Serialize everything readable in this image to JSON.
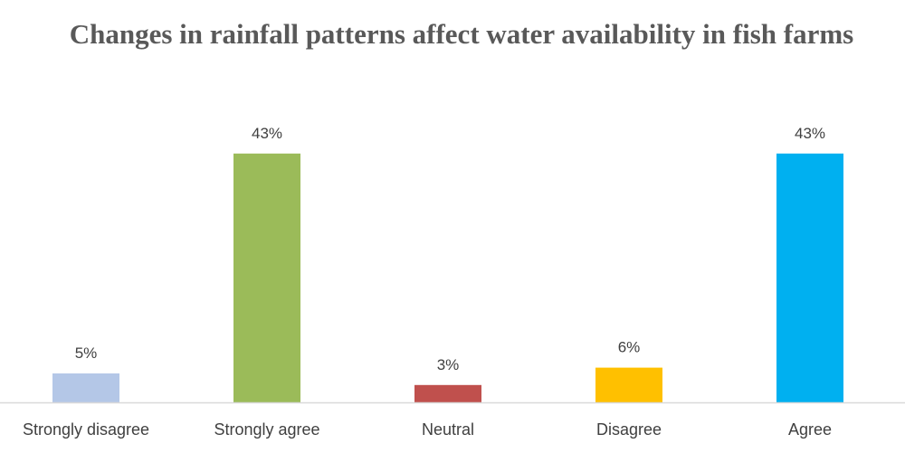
{
  "chart_data": {
    "type": "bar",
    "title": "Changes in rainfall patterns affect water availability in fish farms",
    "categories": [
      "Strongly disagree",
      "Strongly agree",
      "Neutral",
      "Disagree",
      "Agree"
    ],
    "values": [
      5,
      43,
      3,
      6,
      43
    ],
    "value_labels": [
      "5%",
      "43%",
      "3%",
      "6%",
      "43%"
    ],
    "colors": [
      "#B4C7E7",
      "#9BBB59",
      "#C0504D",
      "#FFC000",
      "#00B0F0"
    ],
    "xlabel": "",
    "ylabel": "",
    "ylim": [
      0,
      50
    ],
    "grid": false,
    "legend": "none"
  }
}
